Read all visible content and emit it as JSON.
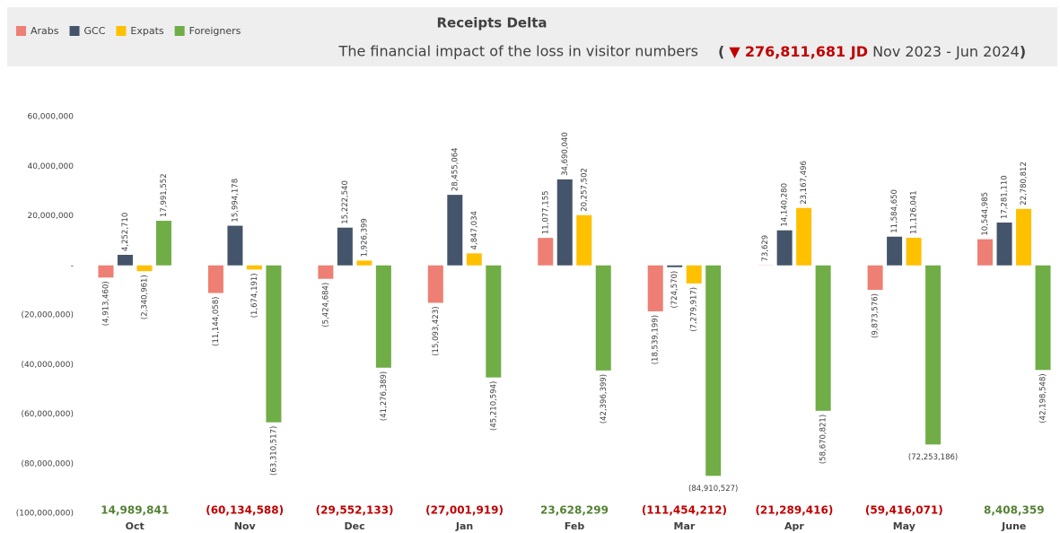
{
  "chart_data": {
    "type": "bar",
    "title": "Receipts Delta",
    "subtitle": "The financial impact of the loss in visitor numbers",
    "headline": {
      "open": "(",
      "marker": "▼",
      "amount": "276,811,681 JD",
      "period": "Nov 2023 - Jun 2024",
      "close": ")"
    },
    "categories": [
      "Oct",
      "Nov",
      "Dec",
      "Jan",
      "Feb",
      "Mar",
      "Apr",
      "May",
      "June"
    ],
    "series": [
      {
        "name": "Arabs",
        "color": "#ee7f74",
        "values": [
          -4913460,
          -11144058,
          -5424684,
          -15093423,
          11077155,
          -18539199,
          73629,
          -9873576,
          10544985
        ],
        "value_labels": [
          "(4,913,460)",
          "(11,144,058)",
          "(5,424,684)",
          "(15,093,423)",
          "11,077,155",
          "(18,539,199)",
          "73,629",
          "(9,873,576)",
          "10,544,985"
        ]
      },
      {
        "name": "GCC",
        "color": "#44546a",
        "values": [
          4252710,
          15994178,
          15222540,
          28455064,
          34690040,
          -724570,
          14140280,
          11584650,
          17281110
        ],
        "value_labels": [
          "4,252,710",
          "15,994,178",
          "15,222,540",
          "28,455,064",
          "34,690,040",
          "(724,570)",
          "14,140,280",
          "11,584,650",
          "17,281,110"
        ]
      },
      {
        "name": "Expats",
        "color": "#ffc000",
        "values": [
          -2340961,
          -1674191,
          1926399,
          4847034,
          20257502,
          -7279917,
          23167496,
          11126041,
          22780812
        ],
        "value_labels": [
          "(2,340,961)",
          "(1,674,191)",
          "1,926,399",
          "4,847,034",
          "20,257,502",
          "(7,279,917)",
          "23,167,496",
          "11,126,041",
          "22,780,812"
        ]
      },
      {
        "name": "Foreigners",
        "color": "#70ad47",
        "values": [
          17991552,
          -63310517,
          -41276389,
          -45210594,
          -42396399,
          -84910527,
          -58670821,
          -72253186,
          -42198548
        ],
        "value_labels": [
          "17,991,552",
          "(63,310,517)",
          "(41,276,389)",
          "(45,210,594)",
          "(42,396,399)",
          "(84,910,527)",
          "(58,670,821)",
          "(72,253,186)",
          "(42,198,548)"
        ]
      }
    ],
    "totals": {
      "values": [
        14989841,
        -60134588,
        -29552133,
        -27001919,
        23628299,
        -111454212,
        -21289416,
        -59416071,
        8408359
      ],
      "value_labels": [
        "14,989,841",
        "(60,134,588)",
        "(29,552,133)",
        "(27,001,919)",
        "23,628,299",
        "(111,454,212)",
        "(21,289,416)",
        "(59,416,071)",
        "8,408,359"
      ]
    },
    "ylim": [
      -100000000,
      60000000
    ],
    "yticks": [
      {
        "value": 60000000,
        "label": "60,000,000"
      },
      {
        "value": 40000000,
        "label": "40,000,000"
      },
      {
        "value": 20000000,
        "label": "20,000,000"
      },
      {
        "value": 0,
        "label": "-"
      },
      {
        "value": -20000000,
        "label": "(20,000,000)"
      },
      {
        "value": -40000000,
        "label": "(40,000,000)"
      },
      {
        "value": -60000000,
        "label": "(60,000,000)"
      },
      {
        "value": -80000000,
        "label": "(80,000,000)"
      },
      {
        "value": -100000000,
        "label": "(100,000,000)"
      }
    ],
    "grid": false,
    "legend": "top-left"
  }
}
